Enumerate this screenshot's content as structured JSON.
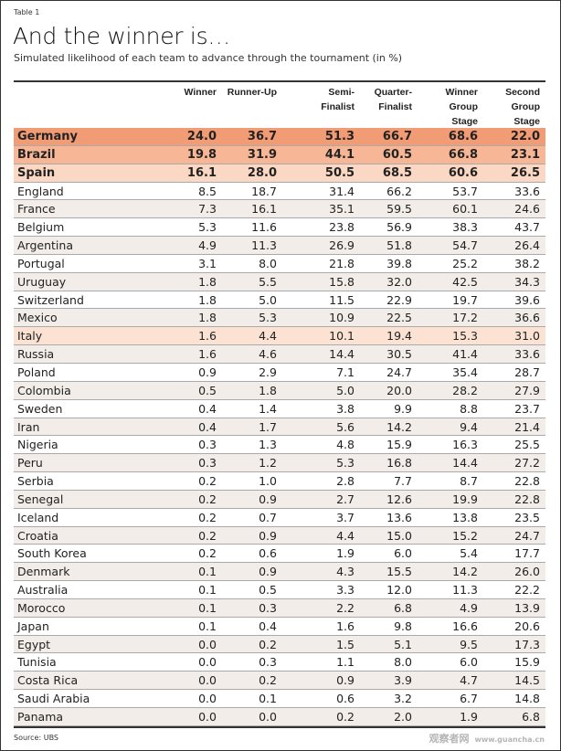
{
  "label": "Table 1",
  "title": "And the winner is…",
  "subtitle": "Simulated likelihood of each team to advance through the tournament (in %)",
  "source": "Source: UBS",
  "watermark": {
    "text": "观察者网",
    "url": "www.guancha.cn"
  },
  "colors": {
    "germany": "#f29c76",
    "brazil": "#f7b797",
    "spain": "#fbd8c4",
    "italy": "#fbe2d3",
    "alt_row": "#f2ede8"
  },
  "columns": [
    "Winner",
    "Runner-Up",
    "Semi-\nFinalist",
    "Quarter-\nFinalist",
    "Winner\nGroup\nStage",
    "Second\nGroup\nStage"
  ],
  "rows": [
    {
      "team": "Germany",
      "values": [
        "24.0",
        "36.7",
        "51.3",
        "66.7",
        "68.6",
        "22.0"
      ],
      "highlight": "germany",
      "bold": true
    },
    {
      "team": "Brazil",
      "values": [
        "19.8",
        "31.9",
        "44.1",
        "60.5",
        "66.8",
        "23.1"
      ],
      "highlight": "brazil",
      "bold": true
    },
    {
      "team": "Spain",
      "values": [
        "16.1",
        "28.0",
        "50.5",
        "68.5",
        "60.6",
        "26.5"
      ],
      "highlight": "spain",
      "bold": true
    },
    {
      "team": "England",
      "values": [
        "8.5",
        "18.7",
        "31.4",
        "66.2",
        "53.7",
        "33.6"
      ]
    },
    {
      "team": "France",
      "values": [
        "7.3",
        "16.1",
        "35.1",
        "59.5",
        "60.1",
        "24.6"
      ]
    },
    {
      "team": "Belgium",
      "values": [
        "5.3",
        "11.6",
        "23.8",
        "56.9",
        "38.3",
        "43.7"
      ]
    },
    {
      "team": "Argentina",
      "values": [
        "4.9",
        "11.3",
        "26.9",
        "51.8",
        "54.7",
        "26.4"
      ]
    },
    {
      "team": "Portugal",
      "values": [
        "3.1",
        "8.0",
        "21.8",
        "39.8",
        "25.2",
        "38.2"
      ]
    },
    {
      "team": "Uruguay",
      "values": [
        "1.8",
        "5.5",
        "15.8",
        "32.0",
        "42.5",
        "34.3"
      ]
    },
    {
      "team": "Switzerland",
      "values": [
        "1.8",
        "5.0",
        "11.5",
        "22.9",
        "19.7",
        "39.6"
      ]
    },
    {
      "team": "Mexico",
      "values": [
        "1.8",
        "5.3",
        "10.9",
        "22.5",
        "17.2",
        "36.6"
      ]
    },
    {
      "team": "Italy",
      "values": [
        "1.6",
        "4.4",
        "10.1",
        "19.4",
        "15.3",
        "31.0"
      ],
      "highlight": "italy"
    },
    {
      "team": "Russia",
      "values": [
        "1.6",
        "4.6",
        "14.4",
        "30.5",
        "41.4",
        "33.6"
      ]
    },
    {
      "team": "Poland",
      "values": [
        "0.9",
        "2.9",
        "7.1",
        "24.7",
        "35.4",
        "28.7"
      ]
    },
    {
      "team": "Colombia",
      "values": [
        "0.5",
        "1.8",
        "5.0",
        "20.0",
        "28.2",
        "27.9"
      ]
    },
    {
      "team": "Sweden",
      "values": [
        "0.4",
        "1.4",
        "3.8",
        "9.9",
        "8.8",
        "23.7"
      ]
    },
    {
      "team": "Iran",
      "values": [
        "0.4",
        "1.7",
        "5.6",
        "14.2",
        "9.4",
        "21.4"
      ]
    },
    {
      "team": "Nigeria",
      "values": [
        "0.3",
        "1.3",
        "4.8",
        "15.9",
        "16.3",
        "25.5"
      ]
    },
    {
      "team": "Peru",
      "values": [
        "0.3",
        "1.2",
        "5.3",
        "16.8",
        "14.4",
        "27.2"
      ]
    },
    {
      "team": "Serbia",
      "values": [
        "0.2",
        "1.0",
        "2.8",
        "7.7",
        "8.7",
        "22.8"
      ]
    },
    {
      "team": "Senegal",
      "values": [
        "0.2",
        "0.9",
        "2.7",
        "12.6",
        "19.9",
        "22.8"
      ]
    },
    {
      "team": "Iceland",
      "values": [
        "0.2",
        "0.7",
        "3.7",
        "13.6",
        "13.8",
        "23.5"
      ]
    },
    {
      "team": "Croatia",
      "values": [
        "0.2",
        "0.9",
        "4.4",
        "15.0",
        "15.2",
        "24.7"
      ]
    },
    {
      "team": "South Korea",
      "values": [
        "0.2",
        "0.6",
        "1.9",
        "6.0",
        "5.4",
        "17.7"
      ]
    },
    {
      "team": "Denmark",
      "values": [
        "0.1",
        "0.9",
        "4.3",
        "15.5",
        "14.2",
        "26.0"
      ]
    },
    {
      "team": "Australia",
      "values": [
        "0.1",
        "0.5",
        "3.3",
        "12.0",
        "11.3",
        "22.2"
      ]
    },
    {
      "team": "Morocco",
      "values": [
        "0.1",
        "0.3",
        "2.2",
        "6.8",
        "4.9",
        "13.9"
      ]
    },
    {
      "team": "Japan",
      "values": [
        "0.1",
        "0.4",
        "1.6",
        "9.8",
        "16.6",
        "20.6"
      ]
    },
    {
      "team": "Egypt",
      "values": [
        "0.0",
        "0.2",
        "1.5",
        "5.1",
        "9.5",
        "17.3"
      ]
    },
    {
      "team": "Tunisia",
      "values": [
        "0.0",
        "0.3",
        "1.1",
        "8.0",
        "6.0",
        "15.9"
      ]
    },
    {
      "team": "Costa Rica",
      "values": [
        "0.0",
        "0.2",
        "0.9",
        "3.9",
        "4.7",
        "14.5"
      ]
    },
    {
      "team": "Saudi Arabia",
      "values": [
        "0.0",
        "0.1",
        "0.6",
        "3.2",
        "6.7",
        "14.8"
      ]
    },
    {
      "team": "Panama",
      "values": [
        "0.0",
        "0.0",
        "0.2",
        "2.0",
        "1.9",
        "6.8"
      ]
    }
  ]
}
